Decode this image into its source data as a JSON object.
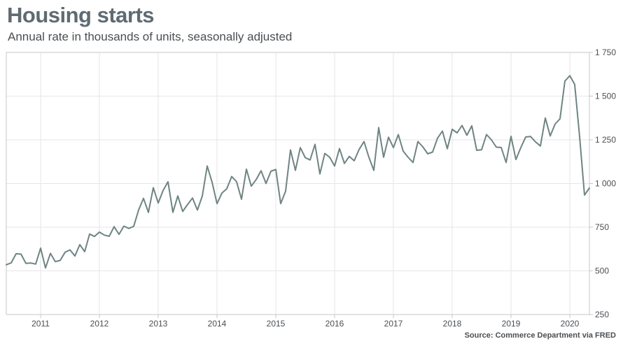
{
  "header": {
    "title": "Housing starts",
    "subtitle": "Annual rate in thousands of units, seasonally adjusted"
  },
  "footer": {
    "source": "Source: Commerce Department via FRED"
  },
  "colors": {
    "line": "#6f8483",
    "grid": "#e6e6e6",
    "frame": "#c7c7c7",
    "title": "#5f6b72"
  },
  "chart_data": {
    "type": "line",
    "title": "Housing starts",
    "subtitle": "Annual rate in thousands of units, seasonally adjusted",
    "xlabel": "",
    "ylabel": "",
    "x_start": "2010-06",
    "x_end": "2020-05",
    "xlim": [
      "2010-06",
      "2020-05"
    ],
    "ylim": [
      250,
      1750
    ],
    "y_ticks": [
      250,
      500,
      750,
      1000,
      1250,
      1500,
      1750
    ],
    "y_tick_labels": [
      "250",
      "500",
      "750",
      "1 000",
      "1 250",
      "1 500",
      "1 750"
    ],
    "x_ticks": [
      "2011",
      "2012",
      "2013",
      "2014",
      "2015",
      "2016",
      "2017",
      "2018",
      "2019",
      "2020"
    ],
    "y_axis_position": "right",
    "grid": true,
    "legend": "none",
    "series": [
      {
        "x": [
          "2010-06",
          "2010-07",
          "2010-08",
          "2010-09",
          "2010-10",
          "2010-11",
          "2010-12",
          "2011-01",
          "2011-02",
          "2011-03",
          "2011-04",
          "2011-05",
          "2011-06",
          "2011-07",
          "2011-08",
          "2011-09",
          "2011-10",
          "2011-11",
          "2011-12",
          "2012-01",
          "2012-02",
          "2012-03",
          "2012-04",
          "2012-05",
          "2012-06",
          "2012-07",
          "2012-08",
          "2012-09",
          "2012-10",
          "2012-11",
          "2012-12",
          "2013-01",
          "2013-02",
          "2013-03",
          "2013-04",
          "2013-05",
          "2013-06",
          "2013-07",
          "2013-08",
          "2013-09",
          "2013-10",
          "2013-11",
          "2013-12",
          "2014-01",
          "2014-02",
          "2014-03",
          "2014-04",
          "2014-05",
          "2014-06",
          "2014-07",
          "2014-08",
          "2014-09",
          "2014-10",
          "2014-11",
          "2014-12",
          "2015-01",
          "2015-02",
          "2015-03",
          "2015-04",
          "2015-05",
          "2015-06",
          "2015-07",
          "2015-08",
          "2015-09",
          "2015-10",
          "2015-11",
          "2015-12",
          "2016-01",
          "2016-02",
          "2016-03",
          "2016-04",
          "2016-05",
          "2016-06",
          "2016-07",
          "2016-08",
          "2016-09",
          "2016-10",
          "2016-11",
          "2016-12",
          "2017-01",
          "2017-02",
          "2017-03",
          "2017-04",
          "2017-05",
          "2017-06",
          "2017-07",
          "2017-08",
          "2017-09",
          "2017-10",
          "2017-11",
          "2017-12",
          "2018-01",
          "2018-02",
          "2018-03",
          "2018-04",
          "2018-05",
          "2018-06",
          "2018-07",
          "2018-08",
          "2018-09",
          "2018-10",
          "2018-11",
          "2018-12",
          "2019-01",
          "2019-02",
          "2019-03",
          "2019-04",
          "2019-05",
          "2019-06",
          "2019-07",
          "2019-08",
          "2019-09",
          "2019-10",
          "2019-11",
          "2019-12",
          "2020-01",
          "2020-02",
          "2020-03",
          "2020-04",
          "2020-05"
        ],
        "values": [
          535,
          546,
          598,
          596,
          543,
          545,
          539,
          630,
          517,
          600,
          553,
          560,
          607,
          620,
          585,
          650,
          610,
          711,
          697,
          722,
          705,
          698,
          753,
          709,
          756,
          743,
          755,
          848,
          915,
          835,
          976,
          888,
          960,
          1010,
          835,
          929,
          840,
          880,
          917,
          848,
          928,
          1100,
          1007,
          885,
          945,
          970,
          1040,
          1010,
          910,
          1082,
          985,
          1023,
          1073,
          1000,
          1070,
          1080,
          885,
          956,
          1192,
          1075,
          1205,
          1148,
          1135,
          1224,
          1055,
          1172,
          1150,
          1100,
          1200,
          1115,
          1155,
          1130,
          1195,
          1240,
          1150,
          1075,
          1320,
          1150,
          1265,
          1205,
          1280,
          1185,
          1150,
          1120,
          1240,
          1210,
          1170,
          1180,
          1259,
          1300,
          1199,
          1310,
          1290,
          1332,
          1276,
          1330,
          1190,
          1193,
          1280,
          1250,
          1208,
          1206,
          1120,
          1270,
          1137,
          1205,
          1266,
          1269,
          1238,
          1215,
          1375,
          1272,
          1340,
          1370,
          1586,
          1617,
          1567,
          1269,
          934,
          974
        ]
      }
    ]
  }
}
